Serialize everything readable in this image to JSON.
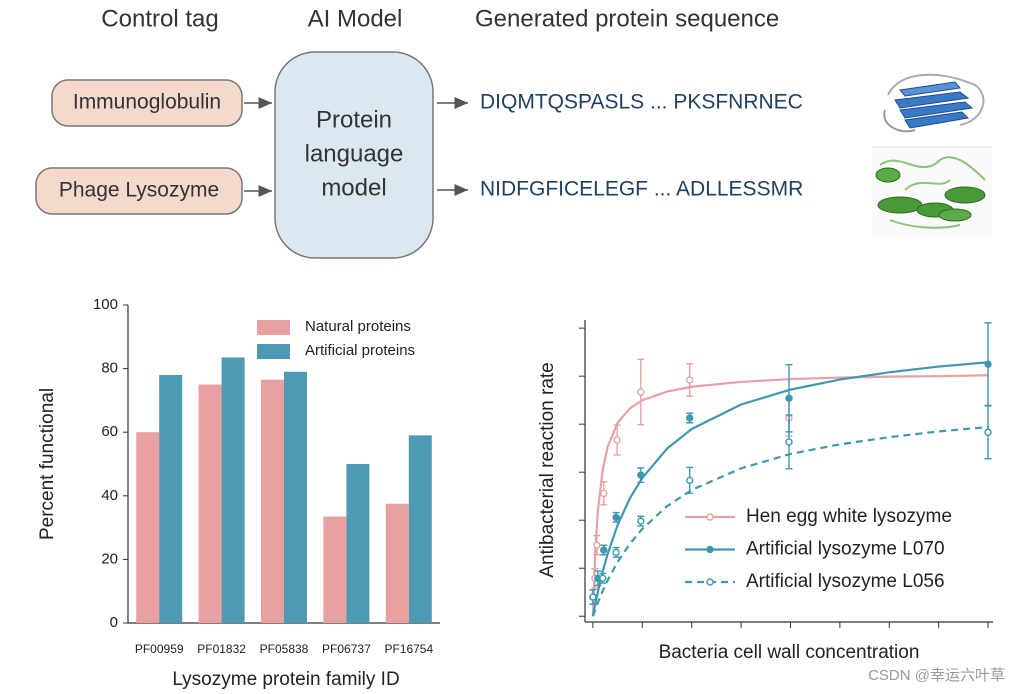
{
  "diagram": {
    "headers": [
      "Control tag",
      "AI Model",
      "Generated protein sequence"
    ],
    "tags": [
      "Immunoglobulin",
      "Phage Lysozyme"
    ],
    "model": {
      "lines": [
        "Protein",
        "language",
        "model"
      ]
    },
    "sequences": [
      "DIQMTQSPASLS ... PKSFNRNEC",
      "NIDFGFICELEGF ... ADLLESSMR"
    ]
  },
  "chart_data": [
    {
      "type": "bar",
      "xlabel": "Lysozyme protein family ID",
      "ylabel": "Percent functional",
      "categories": [
        "PF00959",
        "PF01832",
        "PF05838",
        "PF06737",
        "PF16754"
      ],
      "series": [
        {
          "name": "Natural proteins",
          "color": "#e8a0a2",
          "values": [
            60,
            75,
            76.5,
            33.5,
            37.5
          ]
        },
        {
          "name": "Artificial proteins",
          "color": "#4e9ab5",
          "values": [
            78,
            83.5,
            79,
            50,
            59
          ]
        }
      ],
      "ylim": [
        0,
        100
      ],
      "yticks": [
        0,
        20,
        40,
        60,
        80,
        100
      ],
      "legend": "upper right"
    },
    {
      "type": "line",
      "xlabel": "Bacteria cell wall concentration",
      "ylabel": "Antibacterial reaction rate",
      "xlim": [
        -0.16,
        8.1
      ],
      "ylim": [
        -0.12,
        6.17
      ],
      "xticks": [
        0,
        1,
        2,
        3,
        4,
        5,
        6,
        7,
        8
      ],
      "yticks": [
        0,
        1,
        2,
        3,
        4,
        5,
        6
      ],
      "tick_labels": false,
      "legend": "lower right",
      "series": [
        {
          "name": "Hen egg white lysozyme",
          "color": "#e8a0a2",
          "marker_filled": false,
          "dashed": false,
          "x": [
            0.04,
            0.08,
            0.22,
            0.49,
            0.97,
            1.96,
            3.97
          ],
          "values": [
            0.79,
            1.48,
            2.56,
            3.67,
            4.67,
            4.92,
            4.13
          ],
          "errors": [
            0.2,
            0.2,
            0.24,
            0.31,
            0.68,
            0.34,
            0.38
          ],
          "fit_x": [
            0,
            0.05,
            0.1,
            0.2,
            0.3,
            0.5,
            0.75,
            1,
            1.5,
            2,
            3,
            4,
            5,
            6,
            7,
            8
          ],
          "fit_values": [
            0,
            1.39,
            2.19,
            3.06,
            3.53,
            4.03,
            4.33,
            4.5,
            4.68,
            4.78,
            4.88,
            4.94,
            4.97,
            4.99,
            5.0,
            5.02
          ]
        },
        {
          "name": "Artificial lysozyme L070",
          "color": "#3f97b0",
          "marker_filled": true,
          "dashed": false,
          "x": [
            0,
            0.1,
            0.22,
            0.47,
            0.97,
            1.96,
            3.97,
            8
          ],
          "values": [
            0.4,
            0.79,
            1.38,
            2.06,
            2.94,
            4.13,
            4.54,
            5.25
          ],
          "errors": [
            0.15,
            0.15,
            0.1,
            0.1,
            0.15,
            0.1,
            0.7,
            0.86
          ],
          "fit_x": [
            0,
            0.05,
            0.1,
            0.2,
            0.3,
            0.5,
            0.75,
            1,
            1.5,
            2,
            3,
            4,
            5,
            6,
            7,
            8
          ],
          "fit_values": [
            0,
            0.27,
            0.51,
            0.94,
            1.3,
            1.9,
            2.46,
            2.88,
            3.49,
            3.9,
            4.41,
            4.72,
            4.93,
            5.08,
            5.2,
            5.29
          ]
        },
        {
          "name": "Artificial lysozyme L056",
          "color": "#3f97b0",
          "marker_filled": false,
          "dashed": true,
          "x": [
            0,
            0.2,
            0.47,
            0.97,
            1.96,
            3.97,
            8
          ],
          "values": [
            0.4,
            0.79,
            1.33,
            1.98,
            2.83,
            3.63,
            3.83
          ],
          "errors": [
            0.15,
            0.1,
            0.1,
            0.1,
            0.27,
            0.56,
            0.55
          ],
          "fit_x": [
            0,
            0.05,
            0.1,
            0.2,
            0.3,
            0.5,
            0.75,
            1,
            1.5,
            2,
            3,
            4,
            5,
            6,
            7,
            8
          ],
          "fit_values": [
            0,
            0.14,
            0.28,
            0.53,
            0.75,
            1.13,
            1.51,
            1.82,
            2.29,
            2.63,
            3.08,
            3.38,
            3.58,
            3.73,
            3.85,
            3.94
          ]
        }
      ]
    }
  ],
  "watermark": "CSDN @幸运六叶草"
}
